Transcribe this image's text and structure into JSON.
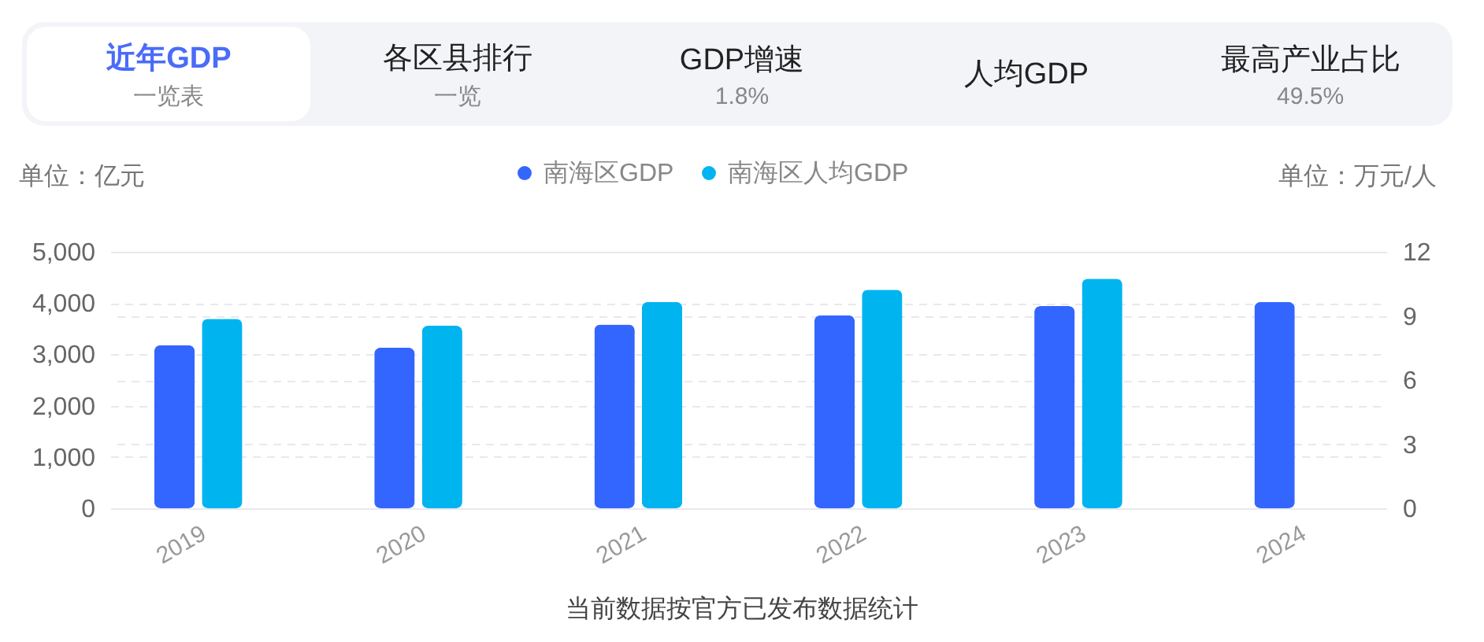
{
  "chart_data": {
    "type": "bar",
    "categories": [
      "2019",
      "2020",
      "2021",
      "2022",
      "2023",
      "2024"
    ],
    "series": [
      {
        "name": "南海区GDP",
        "color": "#3366ff",
        "values": [
          3180,
          3130,
          3580,
          3760,
          3940,
          4020
        ]
      },
      {
        "name": "南海区人均GDP",
        "color": "#00b4f0",
        "axis": "y2",
        "values": [
          8.86,
          8.54,
          9.65,
          10.22,
          10.74,
          null
        ]
      }
    ],
    "ylabel": "单位：亿元",
    "y2label": "单位：万元/人",
    "ylim": [
      0,
      5000
    ],
    "yticks": [
      0,
      {
        "value": 1000,
        "label": "1,000"
      },
      {
        "value": 2000,
        "label": "2,000"
      },
      {
        "value": 3000,
        "label": "3,000"
      },
      {
        "value": 4000,
        "label": "4,000"
      },
      {
        "value": 5000,
        "label": "5,000"
      }
    ],
    "y2lim": [
      0,
      12
    ],
    "y2ticks": [
      0,
      3,
      6,
      9,
      12
    ],
    "grid": true,
    "legend": "top",
    "annotations": [
      "近年GDP",
      "一览表",
      "各区县排行",
      "一览",
      "GDP增速",
      "1.8%",
      "人均GDP",
      "最高产业占比",
      "49.5%",
      "当前数据按官方已发布数据统计"
    ]
  }
}
